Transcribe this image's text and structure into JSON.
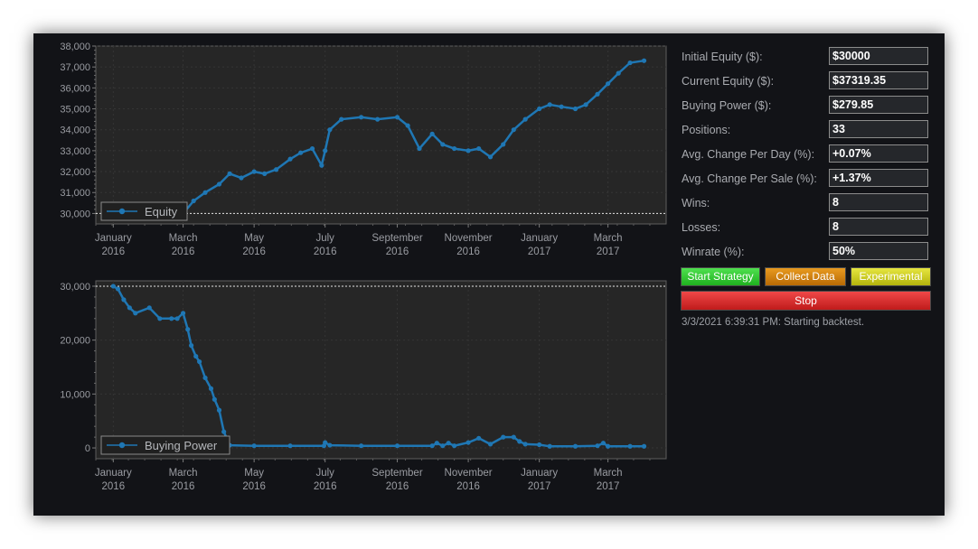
{
  "stats": {
    "rows": [
      {
        "label": "Initial Equity ($):",
        "value": "$30000"
      },
      {
        "label": "Current Equity ($):",
        "value": "$37319.35"
      },
      {
        "label": "Buying Power ($):",
        "value": "$279.85"
      },
      {
        "label": "Positions:",
        "value": "33"
      },
      {
        "label": "Avg. Change Per Day (%):",
        "value": "+0.07%"
      },
      {
        "label": "Avg. Change Per Sale (%):",
        "value": "+1.37%"
      },
      {
        "label": "Wins:",
        "value": "8"
      },
      {
        "label": "Losses:",
        "value": "8"
      },
      {
        "label": "Winrate (%):",
        "value": "50%"
      }
    ]
  },
  "buttons": {
    "start": "Start Strategy",
    "collect": "Collect Data",
    "experimental": "Experimental",
    "stop": "Stop"
  },
  "status_text": "3/3/2021 6:39:31 PM: Starting backtest.",
  "colors": {
    "series": "#1f77b4",
    "plot_bg": "#262626",
    "window_bg": "#121317",
    "start": "#2ecc2e",
    "collect": "#d38410",
    "experimental": "#d2d226",
    "stop": "#dd2f2f"
  },
  "chart_data": [
    {
      "type": "line",
      "legend": "Equity",
      "legend_position": "bottom-left",
      "grid": true,
      "ylim": [
        29500,
        38000
      ],
      "y_ticks": [
        "30,000",
        "31,000",
        "32,000",
        "33,000",
        "34,000",
        "35,000",
        "36,000",
        "37,000",
        "38,000"
      ],
      "x_ticks": [
        [
          "January",
          "2016"
        ],
        [
          "March",
          "2016"
        ],
        [
          "May",
          "2016"
        ],
        [
          "July",
          "2016"
        ],
        [
          "September",
          "2016"
        ],
        [
          "November",
          "2016"
        ],
        [
          "January",
          "2017"
        ],
        [
          "March",
          "2017"
        ]
      ],
      "reference_line": 30000,
      "x": [
        "2016-03-01",
        "2016-03-10",
        "2016-03-20",
        "2016-04-01",
        "2016-04-10",
        "2016-04-20",
        "2016-05-01",
        "2016-05-10",
        "2016-05-20",
        "2016-06-01",
        "2016-06-10",
        "2016-06-20",
        "2016-06-28",
        "2016-07-01",
        "2016-07-05",
        "2016-07-15",
        "2016-08-01",
        "2016-08-15",
        "2016-09-01",
        "2016-09-10",
        "2016-09-20",
        "2016-10-01",
        "2016-10-10",
        "2016-10-20",
        "2016-11-01",
        "2016-11-10",
        "2016-11-20",
        "2016-12-01",
        "2016-12-10",
        "2016-12-20",
        "2017-01-01",
        "2017-01-10",
        "2017-01-20",
        "2017-02-01",
        "2017-02-10",
        "2017-02-20",
        "2017-03-01",
        "2017-03-10",
        "2017-03-20",
        "2017-04-01"
      ],
      "y": [
        30000,
        30600,
        31000,
        31400,
        31900,
        31700,
        32000,
        31900,
        32100,
        32600,
        32900,
        33100,
        32300,
        33000,
        34000,
        34500,
        34600,
        34500,
        34600,
        34200,
        33100,
        33800,
        33300,
        33100,
        33000,
        33100,
        32700,
        33300,
        34000,
        34500,
        35000,
        35200,
        35100,
        35000,
        35200,
        35700,
        36200,
        36700,
        37200,
        37300
      ]
    },
    {
      "type": "line",
      "legend": "Buying Power",
      "legend_position": "bottom-left",
      "grid": true,
      "ylim": [
        -2000,
        31000
      ],
      "y_ticks": [
        "0",
        "10,000",
        "20,000",
        "30,000"
      ],
      "x_ticks": [
        [
          "January",
          "2016"
        ],
        [
          "March",
          "2016"
        ],
        [
          "May",
          "2016"
        ],
        [
          "July",
          "2016"
        ],
        [
          "September",
          "2016"
        ],
        [
          "November",
          "2016"
        ],
        [
          "January",
          "2017"
        ],
        [
          "March",
          "2017"
        ]
      ],
      "reference_line": 30000,
      "x": [
        "2016-01-01",
        "2016-01-05",
        "2016-01-10",
        "2016-01-15",
        "2016-01-20",
        "2016-02-01",
        "2016-02-10",
        "2016-02-20",
        "2016-02-25",
        "2016-03-01",
        "2016-03-05",
        "2016-03-08",
        "2016-03-12",
        "2016-03-15",
        "2016-03-20",
        "2016-03-25",
        "2016-03-28",
        "2016-04-01",
        "2016-04-05",
        "2016-04-10",
        "2016-05-01",
        "2016-06-01",
        "2016-06-30",
        "2016-07-01",
        "2016-07-05",
        "2016-08-01",
        "2016-09-01",
        "2016-10-01",
        "2016-10-05",
        "2016-10-10",
        "2016-10-15",
        "2016-10-20",
        "2016-11-01",
        "2016-11-10",
        "2016-11-20",
        "2016-12-01",
        "2016-12-10",
        "2016-12-15",
        "2016-12-20",
        "2017-01-01",
        "2017-01-10",
        "2017-02-01",
        "2017-02-20",
        "2017-02-25",
        "2017-03-01",
        "2017-03-20",
        "2017-04-01"
      ],
      "y": [
        30000,
        29500,
        27500,
        26000,
        25000,
        26000,
        24000,
        24000,
        24000,
        25000,
        22000,
        19000,
        17000,
        16000,
        13000,
        11000,
        9000,
        7000,
        3000,
        500,
        400,
        400,
        400,
        1000,
        500,
        400,
        400,
        400,
        900,
        400,
        900,
        400,
        1000,
        1800,
        700,
        2000,
        2000,
        1200,
        700,
        600,
        300,
        300,
        400,
        900,
        300,
        300,
        300
      ]
    }
  ]
}
